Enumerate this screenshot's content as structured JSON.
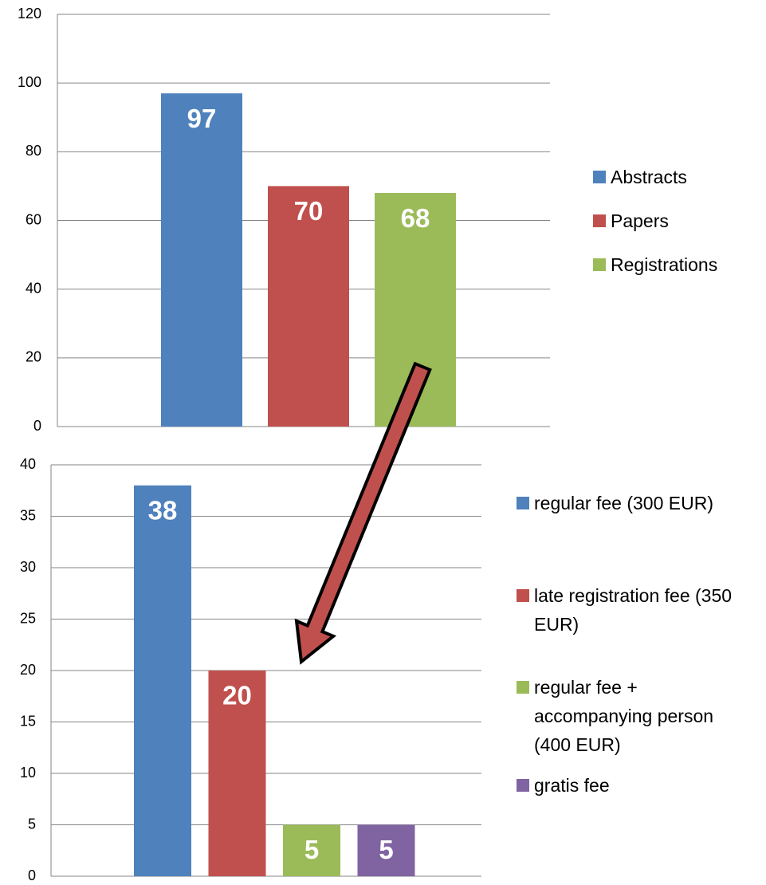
{
  "chart_data": [
    {
      "type": "bar",
      "series": [
        {
          "name": "Abstracts",
          "color": "#4f81bd",
          "values": [
            97
          ]
        },
        {
          "name": "Papers",
          "color": "#c0504d",
          "values": [
            70
          ]
        },
        {
          "name": "Registrations",
          "color": "#9bbb59",
          "values": [
            68
          ]
        }
      ],
      "ylim": [
        0,
        120
      ],
      "yticks": [
        0,
        20,
        40,
        60,
        80,
        100,
        120
      ],
      "grid": true,
      "legend": "right"
    },
    {
      "type": "bar",
      "series": [
        {
          "name": "regular fee (300 EUR)",
          "color": "#4f81bd",
          "values": [
            38
          ]
        },
        {
          "name": "late registration fee (350 EUR)",
          "color": "#c0504d",
          "values": [
            20
          ]
        },
        {
          "name": "regular fee + accompanying person (400 EUR)",
          "color": "#9bbb59",
          "values": [
            5
          ]
        },
        {
          "name": "gratis fee",
          "color": "#8064a2",
          "values": [
            5
          ]
        }
      ],
      "ylim": [
        0,
        40
      ],
      "yticks": [
        0,
        5,
        10,
        15,
        20,
        25,
        30,
        35,
        40
      ],
      "grid": true,
      "legend": "right"
    }
  ]
}
